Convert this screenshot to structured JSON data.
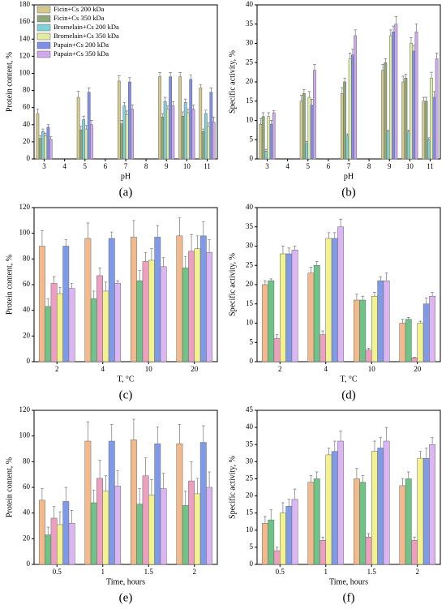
{
  "chart_data": [
    {
      "type": "bar",
      "label": "(a)",
      "x_label": "pH",
      "y_label": "Protein content, %",
      "categories": [
        "3",
        "4",
        "5",
        "6",
        "7",
        "8",
        "9",
        "10",
        "11"
      ],
      "ylim": [
        0,
        180
      ],
      "yticks": [
        0,
        20,
        40,
        60,
        80,
        100,
        120,
        140,
        160,
        180
      ],
      "legend": "top-left",
      "series": [
        {
          "name": "Ficin+Cs 200 kDa",
          "color": "#d6c98c",
          "values": [
            53,
            null,
            72,
            null,
            91,
            null,
            96,
            96,
            83
          ],
          "errors": [
            5,
            null,
            7,
            null,
            6,
            null,
            5,
            5,
            4
          ]
        },
        {
          "name": "Ficin+Cs 350 kDa",
          "color": "#8fa878",
          "values": [
            24,
            null,
            34,
            null,
            41,
            null,
            49,
            50,
            32
          ],
          "errors": [
            3,
            null,
            4,
            null,
            4,
            null,
            4,
            5,
            3
          ]
        },
        {
          "name": "Bromelain+Cs 200 kDa",
          "color": "#7fd0d8",
          "values": [
            32,
            null,
            46,
            null,
            62,
            null,
            67,
            66,
            53
          ],
          "errors": [
            3,
            null,
            4,
            null,
            4,
            null,
            5,
            4,
            4
          ]
        },
        {
          "name": "Bromelain+Cs 350 kDa",
          "color": "#e2eca0",
          "values": [
            27,
            null,
            35,
            null,
            52,
            null,
            58,
            54,
            38
          ],
          "errors": [
            3,
            null,
            4,
            null,
            4,
            null,
            4,
            4,
            4
          ]
        },
        {
          "name": "Papain+Cs 200 kDa",
          "color": "#7f8ee6",
          "values": [
            37,
            null,
            78,
            null,
            90,
            null,
            96,
            93,
            78
          ],
          "errors": [
            3,
            null,
            5,
            null,
            5,
            null,
            5,
            5,
            5
          ]
        },
        {
          "name": "Papain+Cs 350 kDa",
          "color": "#cfa8ee",
          "values": [
            23,
            null,
            40,
            null,
            58,
            null,
            62,
            58,
            43
          ],
          "errors": [
            3,
            null,
            5,
            null,
            5,
            null,
            5,
            5,
            6
          ]
        }
      ]
    },
    {
      "type": "bar",
      "label": "(b)",
      "x_label": "pH",
      "y_label": "Specific activity, %",
      "categories": [
        "3",
        "4",
        "5",
        "6",
        "7",
        "8",
        "9",
        "10",
        "11"
      ],
      "ylim": [
        0,
        40
      ],
      "yticks": [
        0,
        5,
        10,
        15,
        20,
        25,
        30,
        35,
        40
      ],
      "series": [
        {
          "color": "#d6c98c",
          "values": [
            9,
            null,
            15,
            null,
            17,
            null,
            23,
            20,
            15
          ],
          "errors": [
            1.5,
            null,
            1.5,
            null,
            1.5,
            null,
            1.5,
            1.5,
            1
          ]
        },
        {
          "color": "#8fa878",
          "values": [
            11,
            null,
            17,
            null,
            20,
            null,
            25,
            21,
            15
          ],
          "errors": [
            1,
            null,
            1,
            null,
            1,
            null,
            1,
            1,
            1
          ]
        },
        {
          "color": "#7fd0d8",
          "values": [
            2,
            null,
            4,
            null,
            6,
            null,
            7,
            7,
            5
          ],
          "errors": [
            0.5,
            null,
            0.5,
            null,
            0.5,
            null,
            0.5,
            0.5,
            0.5
          ]
        },
        {
          "color": "#e2eca0",
          "values": [
            11,
            null,
            16,
            null,
            26,
            null,
            32,
            30,
            21
          ],
          "errors": [
            1,
            null,
            1.5,
            null,
            1.5,
            null,
            1.5,
            1.5,
            1.5
          ]
        },
        {
          "color": "#7f8ee6",
          "values": [
            9,
            null,
            14,
            null,
            27,
            null,
            33,
            28,
            16
          ],
          "errors": [
            1,
            null,
            1.5,
            null,
            1.5,
            null,
            1.5,
            1.5,
            1.5
          ]
        },
        {
          "color": "#cfa8ee",
          "values": [
            12,
            null,
            23,
            null,
            32,
            null,
            35,
            33,
            26
          ],
          "errors": [
            0.5,
            null,
            1.5,
            null,
            1.5,
            null,
            2,
            2,
            1.5
          ]
        }
      ]
    },
    {
      "type": "bar",
      "label": "(c)",
      "x_label": "T, °C",
      "y_label": "Protein content, %",
      "categories": [
        "2",
        "4",
        "10",
        "20"
      ],
      "ylim": [
        0,
        120
      ],
      "yticks": [
        0,
        20,
        40,
        60,
        80,
        100,
        120
      ],
      "series": [
        {
          "color": "#f2b98c",
          "values": [
            90,
            96,
            97,
            98
          ],
          "errors": [
            12,
            12,
            13,
            14
          ]
        },
        {
          "color": "#6ec487",
          "values": [
            43,
            49,
            63,
            73
          ],
          "errors": [
            6,
            6,
            8,
            9
          ]
        },
        {
          "color": "#ec9fc0",
          "values": [
            61,
            67,
            78,
            86
          ],
          "errors": [
            5,
            6,
            7,
            13
          ]
        },
        {
          "color": "#f2f28e",
          "values": [
            53,
            55,
            79,
            88
          ],
          "errors": [
            5,
            7,
            9,
            10
          ]
        },
        {
          "color": "#7f9be8",
          "values": [
            90,
            96,
            97,
            98
          ],
          "errors": [
            5,
            5,
            9,
            11
          ]
        },
        {
          "color": "#dcb6f2",
          "values": [
            57,
            61,
            74,
            85
          ],
          "errors": [
            4,
            2,
            7,
            10
          ]
        }
      ]
    },
    {
      "type": "bar",
      "label": "(d)",
      "x_label": "T, °C",
      "y_label": "Specific activity, %",
      "categories": [
        "2",
        "4",
        "10",
        "20"
      ],
      "ylim": [
        0,
        40
      ],
      "yticks": [
        0,
        5,
        10,
        15,
        20,
        25,
        30,
        35,
        40
      ],
      "series": [
        {
          "color": "#f2b98c",
          "values": [
            20,
            23,
            16,
            10
          ],
          "errors": [
            1,
            1.5,
            1.5,
            1
          ]
        },
        {
          "color": "#6ec487",
          "values": [
            21,
            25,
            16,
            11
          ],
          "errors": [
            0.5,
            1,
            1,
            0.5
          ]
        },
        {
          "color": "#ec9fc0",
          "values": [
            6,
            7,
            3,
            1
          ],
          "errors": [
            1,
            1,
            0.5,
            0.2
          ]
        },
        {
          "color": "#f2f28e",
          "values": [
            28,
            32,
            17,
            10
          ],
          "errors": [
            2,
            1.5,
            1,
            0.5
          ]
        },
        {
          "color": "#7f9be8",
          "values": [
            28,
            32,
            21,
            15
          ],
          "errors": [
            1.5,
            1.5,
            1,
            1.5
          ]
        },
        {
          "color": "#dcb6f2",
          "values": [
            29,
            35,
            21,
            17
          ],
          "errors": [
            1,
            2,
            2,
            1
          ]
        }
      ]
    },
    {
      "type": "bar",
      "label": "(e)",
      "x_label": "Time, hours",
      "y_label": "Protein content, %",
      "categories": [
        "0.5",
        "1",
        "1.5",
        "2"
      ],
      "ylim": [
        0,
        120
      ],
      "yticks": [
        0,
        20,
        40,
        60,
        80,
        100,
        120
      ],
      "series": [
        {
          "color": "#f2b98c",
          "values": [
            50,
            96,
            97,
            94
          ],
          "errors": [
            9,
            15,
            16,
            15
          ]
        },
        {
          "color": "#6ec487",
          "values": [
            23,
            48,
            47,
            46
          ],
          "errors": [
            6,
            10,
            12,
            11
          ]
        },
        {
          "color": "#ec9fc0",
          "values": [
            36,
            67,
            69,
            65
          ],
          "errors": [
            9,
            14,
            14,
            15
          ]
        },
        {
          "color": "#f2f28e",
          "values": [
            31,
            57,
            54,
            55
          ],
          "errors": [
            10,
            12,
            12,
            12
          ]
        },
        {
          "color": "#7f9be8",
          "values": [
            49,
            96,
            94,
            95
          ],
          "errors": [
            11,
            13,
            13,
            13
          ]
        },
        {
          "color": "#dcb6f2",
          "values": [
            32,
            61,
            59,
            60
          ],
          "errors": [
            10,
            12,
            12,
            12
          ]
        }
      ]
    },
    {
      "type": "bar",
      "label": "(f)",
      "x_label": "Time, hours",
      "y_label": "Specific activity, %",
      "categories": [
        "0.5",
        "1",
        "1.5",
        "2"
      ],
      "ylim": [
        0,
        45
      ],
      "yticks": [
        0,
        5,
        10,
        15,
        20,
        25,
        30,
        35,
        40,
        45
      ],
      "series": [
        {
          "color": "#f2b98c",
          "values": [
            12,
            24,
            25,
            23
          ],
          "errors": [
            2,
            2,
            3,
            2
          ]
        },
        {
          "color": "#6ec487",
          "values": [
            13,
            25,
            24,
            25
          ],
          "errors": [
            3,
            2,
            2,
            2
          ]
        },
        {
          "color": "#ec9fc0",
          "values": [
            4,
            7,
            8,
            7
          ],
          "errors": [
            1,
            1,
            1,
            1
          ]
        },
        {
          "color": "#f2f28e",
          "values": [
            15,
            32,
            33,
            31
          ],
          "errors": [
            3,
            2,
            3,
            2
          ]
        },
        {
          "color": "#7f9be8",
          "values": [
            17,
            33,
            34,
            31
          ],
          "errors": [
            2,
            3,
            3,
            3
          ]
        },
        {
          "color": "#dcb6f2",
          "values": [
            19,
            36,
            36,
            35
          ],
          "errors": [
            3,
            3,
            4,
            2
          ]
        }
      ]
    }
  ]
}
